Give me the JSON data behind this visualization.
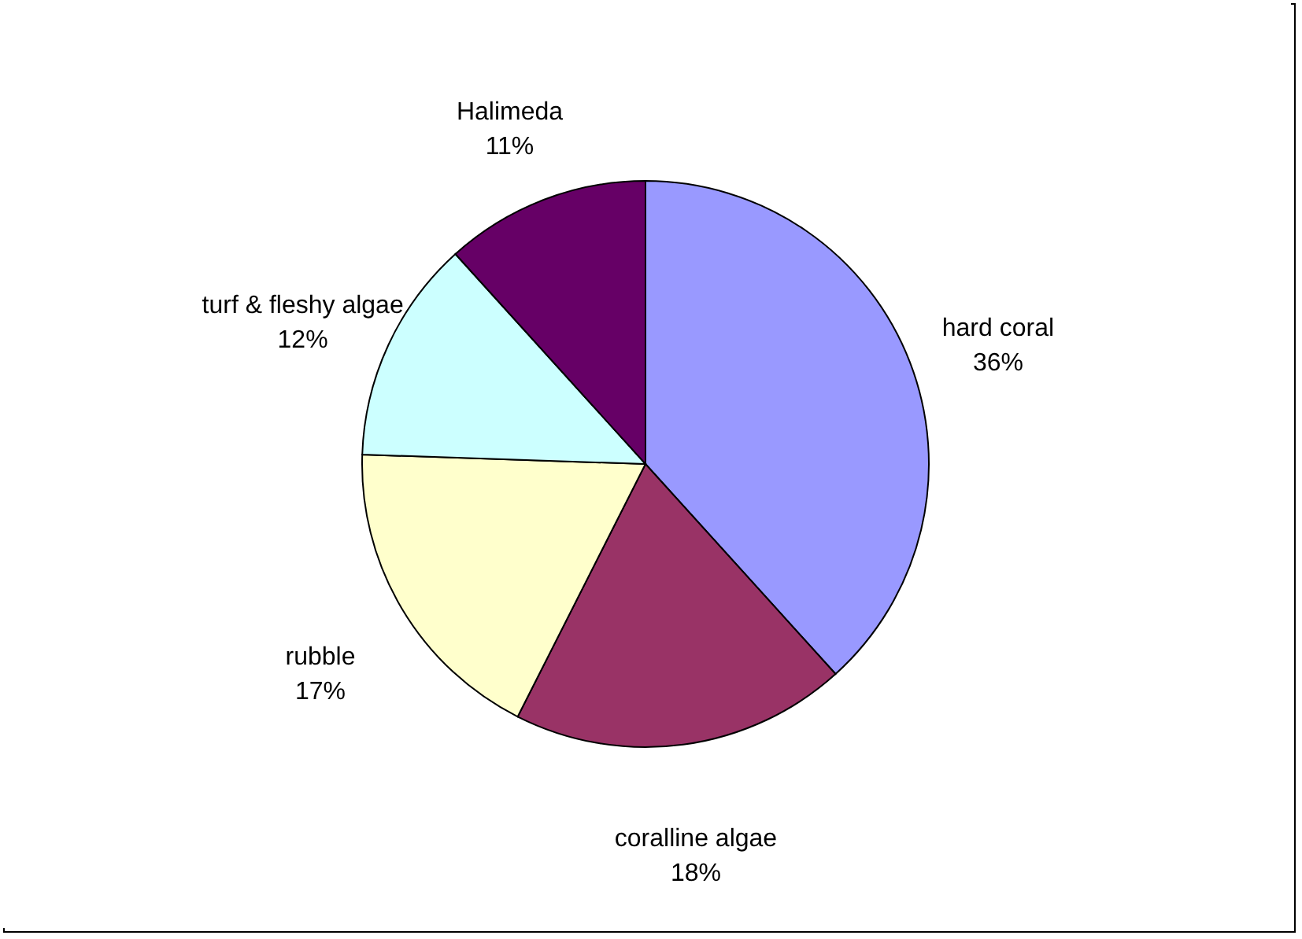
{
  "chart_data": {
    "type": "pie",
    "categories": [
      "hard coral",
      "coralline algae",
      "rubble",
      "turf & fleshy algae",
      "Halimeda"
    ],
    "values": [
      36,
      18,
      17,
      12,
      11
    ],
    "value_labels": [
      "36%",
      "18%",
      "17%",
      "12%",
      "11%"
    ],
    "colors": [
      "#9999ff",
      "#993366",
      "#ffffcc",
      "#ccffff",
      "#660066"
    ],
    "legend": false
  }
}
